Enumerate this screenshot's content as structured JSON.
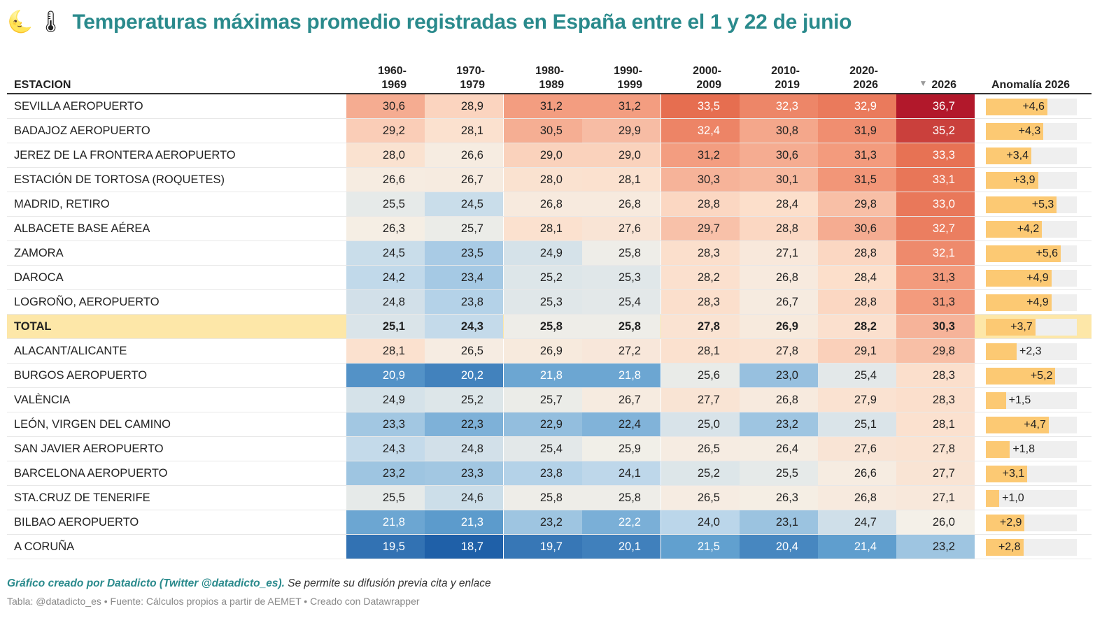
{
  "title": {
    "emoji_moon": "🌜",
    "emoji_thermometer": "🌡",
    "text": "Temperaturas máximas promedio registradas en España entre el 1 y 22 de junio"
  },
  "columns": {
    "station": "ESTACION",
    "periods": [
      "1960-\n1969",
      "1970-\n1979",
      "1980-\n1989",
      "1990-\n1999",
      "2000-\n2009",
      "2010-\n2019",
      "2020-\n2026",
      "2026"
    ],
    "anomaly": "Anomalía 2026",
    "sort_icon": "sort-descending-icon"
  },
  "colors": {
    "title": "#2a8a8c",
    "total_row": "#fde7a8",
    "bar": "#fcc973",
    "bar_track": "#efefef"
  },
  "chart_data": {
    "type": "table",
    "title": "Temperaturas máximas promedio registradas en España entre el 1 y 22 de junio",
    "rows": [
      {
        "station": "SEVILLA AEROPUERTO",
        "values": [
          "30,6",
          "28,9",
          "31,2",
          "31,2",
          "33,5",
          "32,3",
          "32,9",
          "36,7"
        ],
        "anomaly": "+4,6"
      },
      {
        "station": "BADAJOZ AEROPUERTO",
        "values": [
          "29,2",
          "28,1",
          "30,5",
          "29,9",
          "32,4",
          "30,8",
          "31,9",
          "35,2"
        ],
        "anomaly": "+4,3"
      },
      {
        "station": "JEREZ DE LA FRONTERA AEROPUERTO",
        "values": [
          "28,0",
          "26,6",
          "29,0",
          "29,0",
          "31,2",
          "30,6",
          "31,3",
          "33,3"
        ],
        "anomaly": "+3,4"
      },
      {
        "station": "ESTACIÓN DE TORTOSA (ROQUETES)",
        "values": [
          "26,6",
          "26,7",
          "28,0",
          "28,1",
          "30,3",
          "30,1",
          "31,5",
          "33,1"
        ],
        "anomaly": "+3,9"
      },
      {
        "station": "MADRID, RETIRO",
        "values": [
          "25,5",
          "24,5",
          "26,8",
          "26,8",
          "28,8",
          "28,4",
          "29,8",
          "33,0"
        ],
        "anomaly": "+5,3"
      },
      {
        "station": "ALBACETE BASE AÉREA",
        "values": [
          "26,3",
          "25,7",
          "28,1",
          "27,6",
          "29,7",
          "28,8",
          "30,6",
          "32,7"
        ],
        "anomaly": "+4,2"
      },
      {
        "station": "ZAMORA",
        "values": [
          "24,5",
          "23,5",
          "24,9",
          "25,8",
          "28,3",
          "27,1",
          "28,8",
          "32,1"
        ],
        "anomaly": "+5,6"
      },
      {
        "station": "DAROCA",
        "values": [
          "24,2",
          "23,4",
          "25,2",
          "25,3",
          "28,2",
          "26,8",
          "28,4",
          "31,3"
        ],
        "anomaly": "+4,9"
      },
      {
        "station": "LOGROÑO, AEROPUERTO",
        "values": [
          "24,8",
          "23,8",
          "25,3",
          "25,4",
          "28,3",
          "26,7",
          "28,8",
          "31,3"
        ],
        "anomaly": "+4,9"
      },
      {
        "station": "TOTAL",
        "values": [
          "25,1",
          "24,3",
          "25,8",
          "25,8",
          "27,8",
          "26,9",
          "28,2",
          "30,3"
        ],
        "anomaly": "+3,7",
        "total": true
      },
      {
        "station": "ALACANT/ALICANTE",
        "values": [
          "28,1",
          "26,5",
          "26,9",
          "27,2",
          "28,1",
          "27,8",
          "29,1",
          "29,8"
        ],
        "anomaly": "+2,3"
      },
      {
        "station": "BURGOS AEROPUERTO",
        "values": [
          "20,9",
          "20,2",
          "21,8",
          "21,8",
          "25,6",
          "23,0",
          "25,4",
          "28,3"
        ],
        "anomaly": "+5,2"
      },
      {
        "station": "VALÈNCIA",
        "values": [
          "24,9",
          "25,2",
          "25,7",
          "26,7",
          "27,7",
          "26,8",
          "27,9",
          "28,3"
        ],
        "anomaly": "+1,5"
      },
      {
        "station": "LEÓN, VIRGEN DEL CAMINO",
        "values": [
          "23,3",
          "22,3",
          "22,9",
          "22,4",
          "25,0",
          "23,2",
          "25,1",
          "28,1"
        ],
        "anomaly": "+4,7"
      },
      {
        "station": "SAN JAVIER AEROPUERTO",
        "values": [
          "24,3",
          "24,8",
          "25,4",
          "25,9",
          "26,5",
          "26,4",
          "27,6",
          "27,8"
        ],
        "anomaly": "+1,8"
      },
      {
        "station": "BARCELONA AEROPUERTO",
        "values": [
          "23,2",
          "23,3",
          "23,8",
          "24,1",
          "25,2",
          "25,5",
          "26,6",
          "27,7"
        ],
        "anomaly": "+3,1"
      },
      {
        "station": "STA.CRUZ DE TENERIFE",
        "values": [
          "25,5",
          "24,6",
          "25,8",
          "25,8",
          "26,5",
          "26,3",
          "26,8",
          "27,1"
        ],
        "anomaly": "+1,0"
      },
      {
        "station": "BILBAO AEROPUERTO",
        "values": [
          "21,8",
          "21,3",
          "23,2",
          "22,2",
          "24,0",
          "23,1",
          "24,7",
          "26,0"
        ],
        "anomaly": "+2,9"
      },
      {
        "station": "A CORUÑA",
        "values": [
          "19,5",
          "18,7",
          "19,7",
          "20,1",
          "21,5",
          "20,4",
          "21,4",
          "23,2"
        ],
        "anomaly": "+2,8"
      }
    ],
    "anomaly_range": [
      0,
      6.8
    ]
  },
  "footer": {
    "credit": "Gráfico creado por Datadicto (Twitter @datadicto_es).",
    "note": " Se permite su difusión previa cita y enlace",
    "source": "Tabla: @datadicto_es • Fuente: Cálculos propios a partir de AEMET • Creado con Datawrapper"
  }
}
